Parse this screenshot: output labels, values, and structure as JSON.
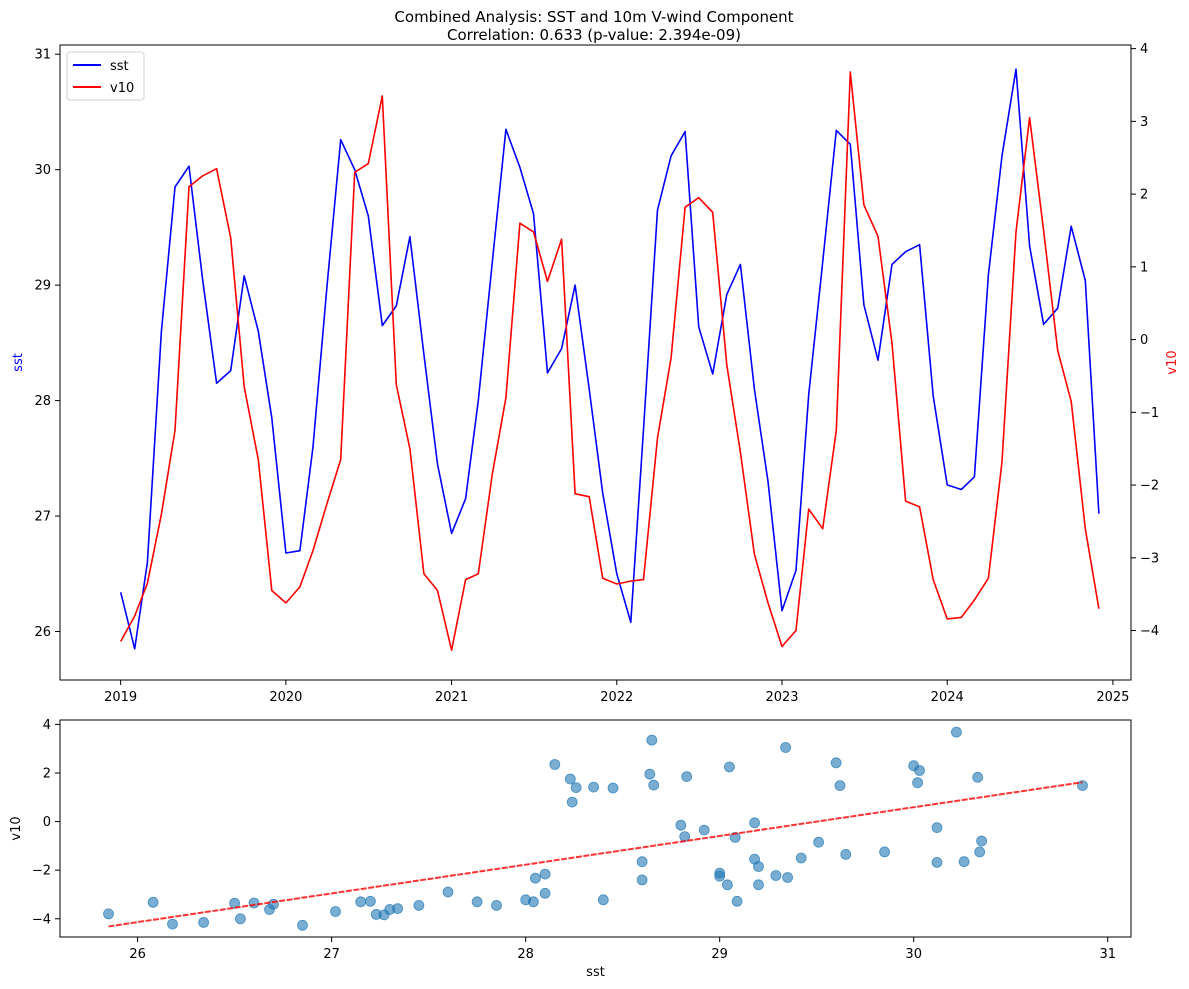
{
  "figure": {
    "title_line1": "Combined Analysis: SST and 10m V-wind Component",
    "title_line2": "Correlation: 0.633 (p-value: 2.394e-09)"
  },
  "chart_data": [
    {
      "type": "line",
      "x_unit": "month",
      "x": [
        "2019-01",
        "2019-02",
        "2019-03",
        "2019-04",
        "2019-05",
        "2019-06",
        "2019-07",
        "2019-08",
        "2019-09",
        "2019-10",
        "2019-11",
        "2019-12",
        "2020-01",
        "2020-02",
        "2020-03",
        "2020-04",
        "2020-05",
        "2020-06",
        "2020-07",
        "2020-08",
        "2020-09",
        "2020-10",
        "2020-11",
        "2020-12",
        "2021-01",
        "2021-02",
        "2021-03",
        "2021-04",
        "2021-05",
        "2021-06",
        "2021-07",
        "2021-08",
        "2021-09",
        "2021-10",
        "2021-11",
        "2021-12",
        "2022-01",
        "2022-02",
        "2022-03",
        "2022-04",
        "2022-05",
        "2022-06",
        "2022-07",
        "2022-08",
        "2022-09",
        "2022-10",
        "2022-11",
        "2022-12",
        "2023-01",
        "2023-02",
        "2023-03",
        "2023-04",
        "2023-05",
        "2023-06",
        "2023-07",
        "2023-08",
        "2023-09",
        "2023-10",
        "2023-11",
        "2023-12",
        "2024-01",
        "2024-02",
        "2024-03",
        "2024-04",
        "2024-05",
        "2024-06",
        "2024-07",
        "2024-08",
        "2024-09",
        "2024-10",
        "2024-11",
        "2024-12"
      ],
      "series": [
        {
          "name": "sst",
          "axis": "left",
          "color": "#0000ff",
          "values": [
            26.34,
            25.85,
            26.6,
            28.6,
            29.85,
            30.03,
            29.05,
            28.15,
            28.26,
            29.08,
            28.6,
            27.85,
            26.68,
            26.7,
            27.6,
            29.0,
            30.26,
            30.0,
            29.6,
            28.65,
            28.82,
            29.42,
            28.4,
            27.45,
            26.85,
            27.15,
            28.0,
            29.2,
            30.35,
            30.02,
            29.62,
            28.24,
            28.45,
            29.0,
            28.1,
            27.2,
            26.5,
            26.08,
            27.75,
            29.65,
            30.12,
            30.33,
            28.64,
            28.23,
            28.92,
            29.18,
            28.1,
            27.3,
            26.18,
            26.53,
            28.05,
            29.2,
            30.34,
            30.22,
            28.83,
            28.35,
            29.18,
            29.29,
            29.35,
            28.04,
            27.27,
            27.23,
            27.34,
            29.09,
            30.12,
            30.87,
            29.34,
            28.66,
            28.8,
            29.51,
            29.04,
            27.02
          ]
        },
        {
          "name": "v10",
          "axis": "right",
          "color": "#ff0000",
          "values": [
            -4.15,
            -3.8,
            -3.35,
            -2.4,
            -1.25,
            2.1,
            2.25,
            2.35,
            1.4,
            -0.65,
            -1.65,
            -3.45,
            -3.62,
            -3.4,
            -2.9,
            -2.25,
            -1.65,
            2.3,
            2.42,
            3.35,
            -0.62,
            -1.5,
            -3.22,
            -3.45,
            -4.27,
            -3.3,
            -3.22,
            -1.85,
            -0.8,
            1.6,
            1.48,
            0.8,
            1.38,
            -2.12,
            -2.16,
            -3.28,
            -3.36,
            -3.32,
            -3.3,
            -1.35,
            -0.25,
            1.82,
            1.95,
            1.75,
            -0.35,
            -1.55,
            -2.95,
            -3.62,
            -4.22,
            -4.0,
            -2.33,
            -2.6,
            -1.25,
            3.68,
            1.85,
            1.42,
            -0.05,
            -2.22,
            -2.3,
            -3.3,
            -3.84,
            -3.82,
            -3.58,
            -3.28,
            -1.68,
            1.48,
            3.05,
            1.5,
            -0.15,
            -0.85,
            -2.6,
            -3.7
          ]
        }
      ],
      "xlim": [
        "2018-08-20",
        "2025-02-10"
      ],
      "x_ticks": [
        "2019",
        "2020",
        "2021",
        "2022",
        "2023",
        "2024",
        "2025"
      ],
      "ylim_left": [
        25.58,
        31.08
      ],
      "ylim_right": [
        -4.68,
        4.05
      ],
      "y_ticks_left": [
        26,
        27,
        28,
        29,
        30,
        31
      ],
      "y_ticks_right": [
        -4,
        -3,
        -2,
        -1,
        0,
        1,
        2,
        3,
        4
      ],
      "ylabel_left": "sst",
      "ylabel_right": "v10",
      "grid": false,
      "legend": {
        "position": "top-left",
        "entries": [
          "sst",
          "v10"
        ]
      }
    },
    {
      "type": "scatter",
      "xlabel": "sst",
      "ylabel": "v10",
      "xlim": [
        25.6,
        31.12
      ],
      "ylim": [
        -4.75,
        4.18
      ],
      "x_ticks": [
        26,
        27,
        28,
        29,
        30,
        31
      ],
      "y_ticks": [
        -4,
        -2,
        0,
        2,
        4
      ],
      "point_color": "#1f77b4",
      "point_alpha": 0.6,
      "trend_color": "#ff0000",
      "trend_alpha": 0.8,
      "trend_line": {
        "slope": 1.182,
        "intercept": -34.87,
        "x_range": [
          25.85,
          30.87
        ]
      },
      "grid": false
    }
  ]
}
